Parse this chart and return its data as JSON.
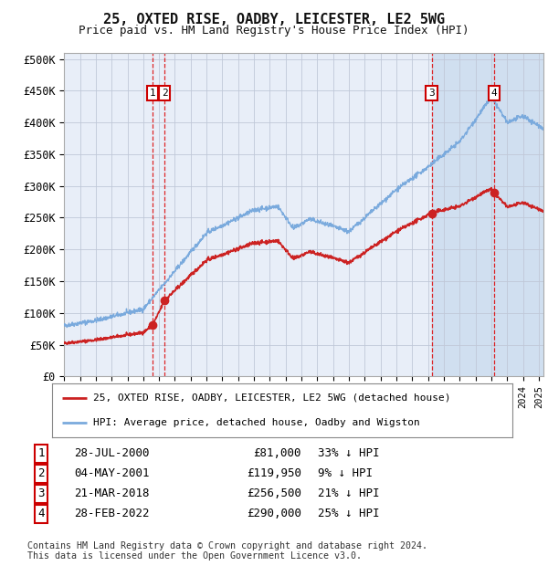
{
  "title1": "25, OXTED RISE, OADBY, LEICESTER, LE2 5WG",
  "title2": "Price paid vs. HM Land Registry's House Price Index (HPI)",
  "ylabel_ticks": [
    "£0",
    "£50K",
    "£100K",
    "£150K",
    "£200K",
    "£250K",
    "£300K",
    "£350K",
    "£400K",
    "£450K",
    "£500K"
  ],
  "ylim": [
    0,
    510000
  ],
  "xlim_start": 1995.0,
  "xlim_end": 2025.3,
  "legend_line1": "25, OXTED RISE, OADBY, LEICESTER, LE2 5WG (detached house)",
  "legend_line2": "HPI: Average price, detached house, Oadby and Wigston",
  "transactions": [
    {
      "num": 1,
      "date": "28-JUL-2000",
      "price": 81000,
      "pct": "33% ↓ HPI",
      "year": 2000.57
    },
    {
      "num": 2,
      "date": "04-MAY-2001",
      "price": 119950,
      "pct": "9% ↓ HPI",
      "year": 2001.34
    },
    {
      "num": 3,
      "date": "21-MAR-2018",
      "price": 256500,
      "pct": "21% ↓ HPI",
      "year": 2018.22
    },
    {
      "num": 4,
      "date": "28-FEB-2022",
      "price": 290000,
      "pct": "25% ↓ HPI",
      "year": 2022.16
    }
  ],
  "footer1": "Contains HM Land Registry data © Crown copyright and database right 2024.",
  "footer2": "This data is licensed under the Open Government Licence v3.0.",
  "hpi_color": "#7aaadd",
  "price_color": "#cc2222",
  "vline_color": "#dd0000",
  "box_color": "#cc0000",
  "background_chart": "#e8eef8",
  "background_fig": "#ffffff",
  "shade_color": "#d0dff0",
  "grid_color": "#c0c8d8"
}
